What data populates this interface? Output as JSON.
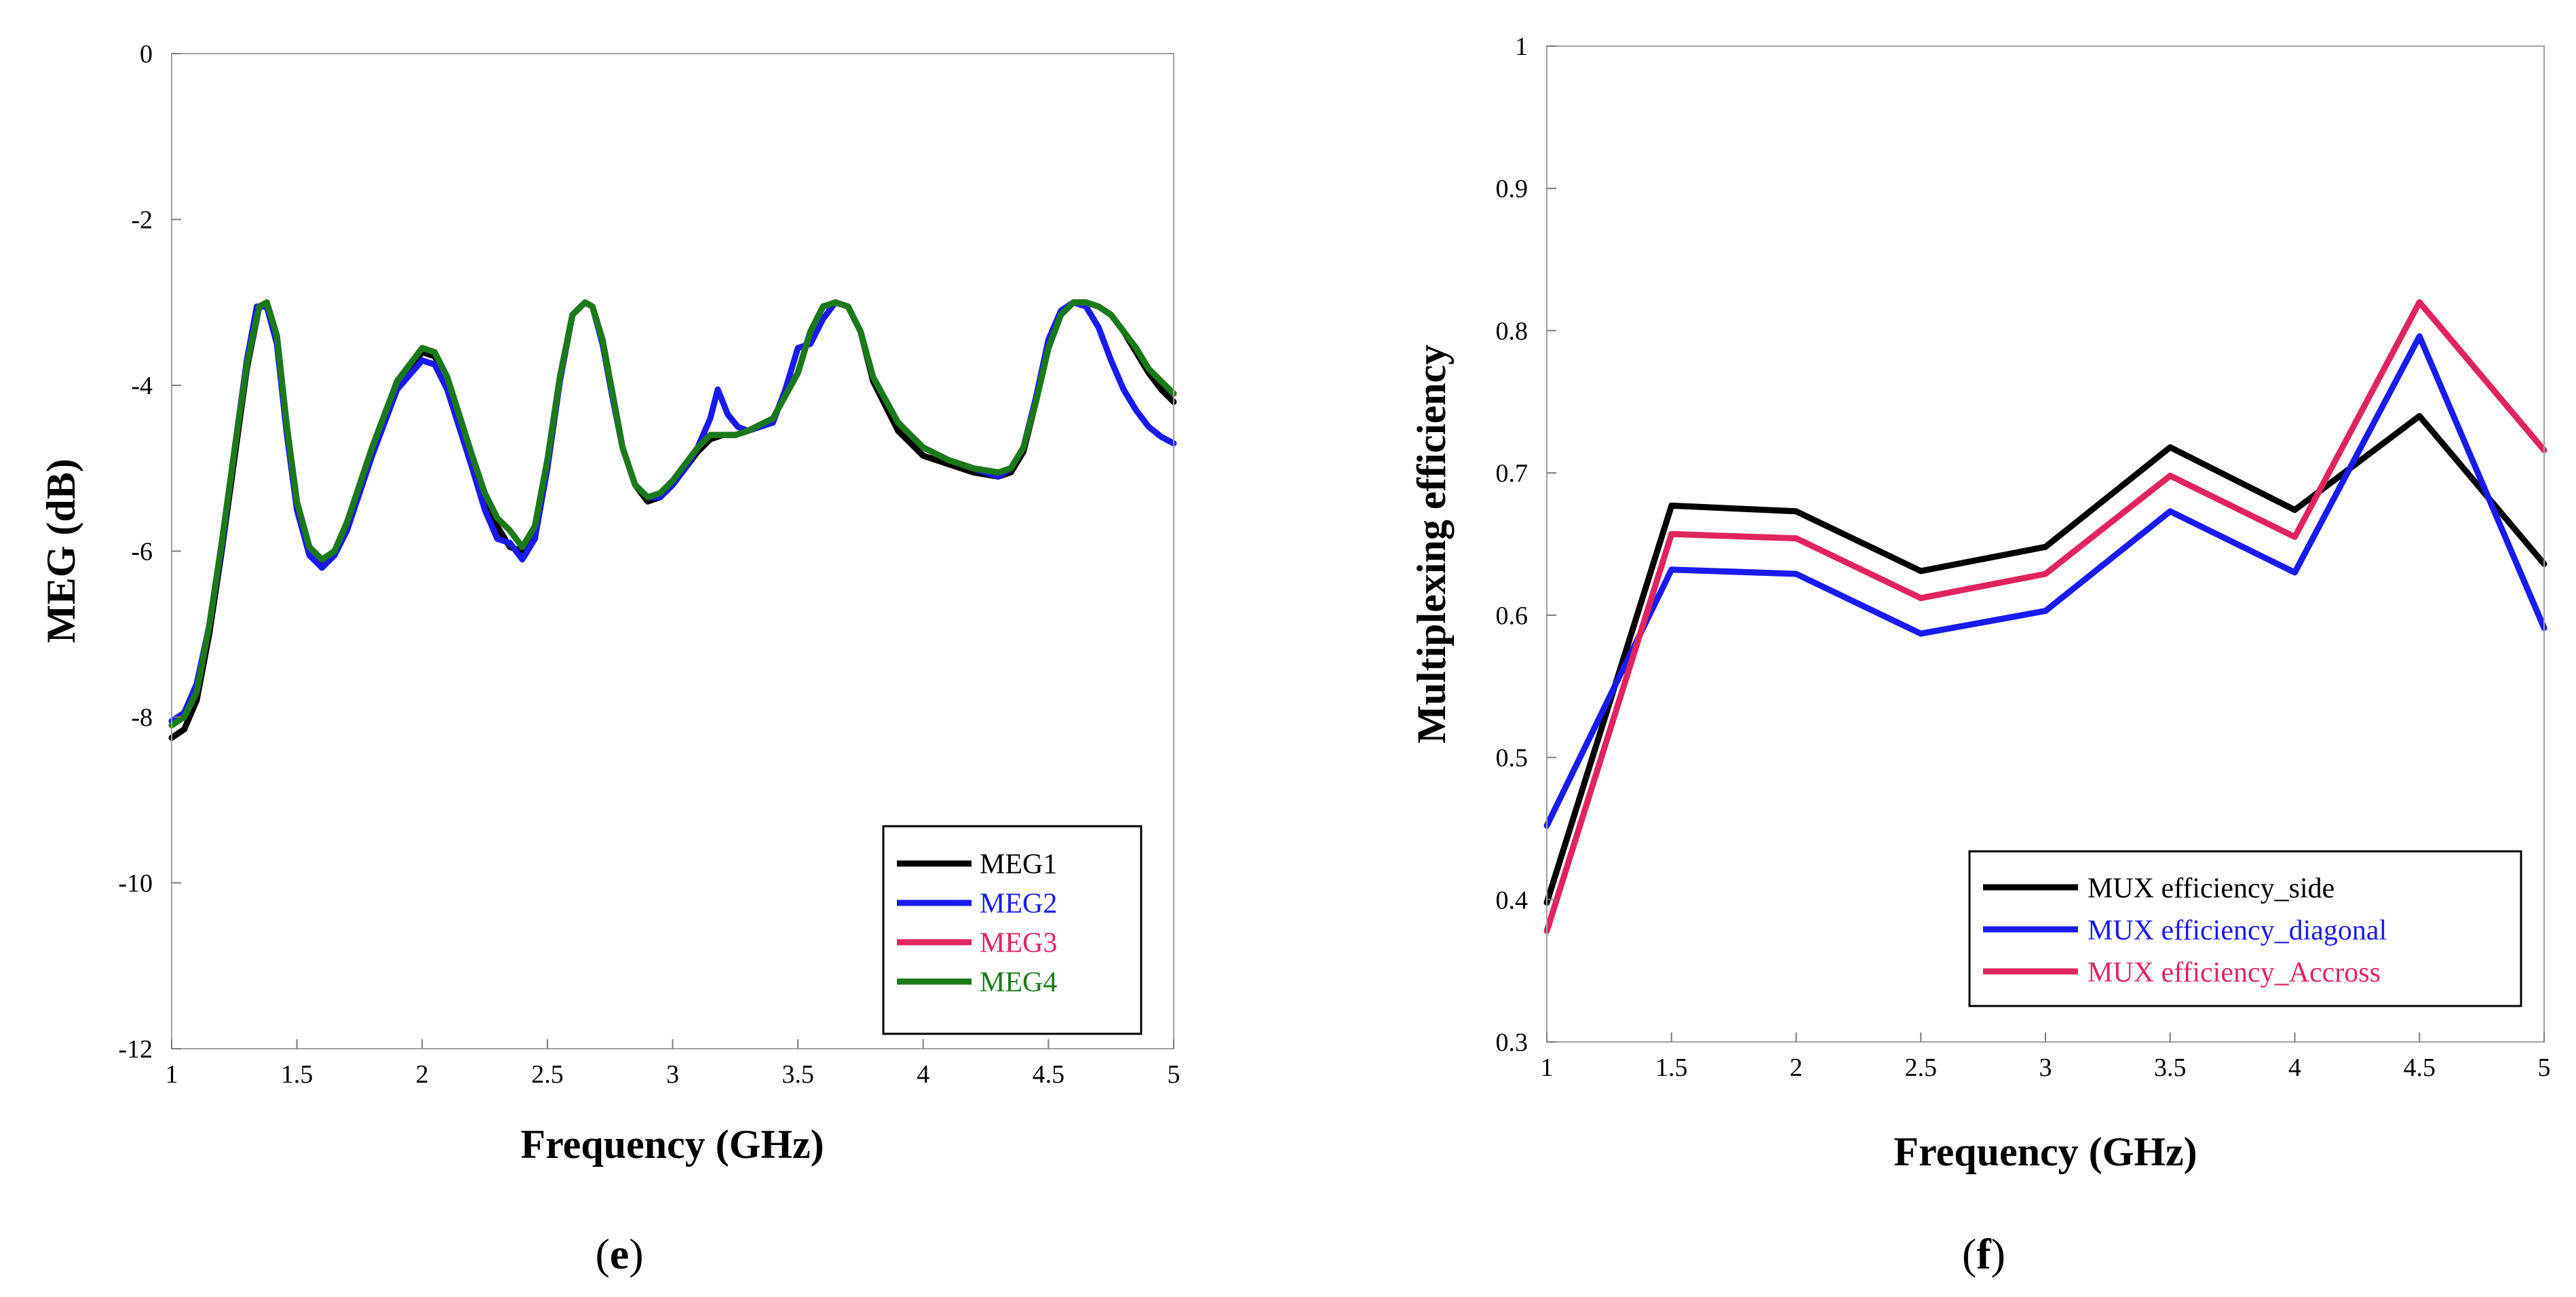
{
  "chart_data": [
    {
      "type": "line",
      "panel": "e",
      "title": "",
      "xlabel": "Frequency (GHz)",
      "ylabel": "MEG (dB)",
      "xlim": [
        1,
        5
      ],
      "ylim": [
        -12,
        0
      ],
      "xticks": [
        1,
        1.5,
        2,
        2.5,
        3,
        3.5,
        4,
        4.5,
        5
      ],
      "yticks": [
        0,
        -2,
        -4,
        -6,
        -8,
        -10,
        -12
      ],
      "xtick_labels": [
        "1",
        "1.5",
        "2",
        "2.5",
        "3",
        "3.5",
        "4",
        "4.5",
        "5"
      ],
      "ytick_labels": [
        "0",
        "-2",
        "-4",
        "-6",
        "-8",
        "-10",
        "-12"
      ],
      "grid": false,
      "legend_position": "bottom-right",
      "series": [
        {
          "name": "MEG1",
          "color": "#000000",
          "x": [
            1.0,
            1.05,
            1.1,
            1.15,
            1.2,
            1.25,
            1.3,
            1.35,
            1.38,
            1.42,
            1.46,
            1.5,
            1.55,
            1.6,
            1.65,
            1.7,
            1.8,
            1.9,
            2.0,
            2.05,
            2.1,
            2.2,
            2.3,
            2.35,
            2.4,
            2.45,
            2.5,
            2.55,
            2.6,
            2.65,
            2.68,
            2.72,
            2.76,
            2.8,
            2.85,
            2.9,
            2.95,
            3.0,
            3.05,
            3.1,
            3.15,
            3.2,
            3.25,
            3.3,
            3.4,
            3.5,
            3.55,
            3.6,
            3.65,
            3.7,
            3.75,
            3.8,
            3.9,
            4.0,
            4.1,
            4.2,
            4.3,
            4.35,
            4.4,
            4.45,
            4.5,
            4.55,
            4.6,
            4.65,
            4.7,
            4.75,
            4.8,
            4.85,
            4.9,
            4.95,
            5.0
          ],
          "y": [
            -8.25,
            -8.15,
            -7.8,
            -7.0,
            -6.0,
            -4.9,
            -3.8,
            -3.05,
            -3.0,
            -3.4,
            -4.5,
            -5.4,
            -6.0,
            -6.15,
            -6.05,
            -5.7,
            -4.8,
            -4.0,
            -3.6,
            -3.65,
            -3.95,
            -4.9,
            -5.7,
            -5.95,
            -6.0,
            -5.7,
            -4.9,
            -3.9,
            -3.15,
            -3.0,
            -3.05,
            -3.45,
            -4.1,
            -4.75,
            -5.2,
            -5.4,
            -5.35,
            -5.2,
            -5.0,
            -4.8,
            -4.65,
            -4.6,
            -4.6,
            -4.55,
            -4.4,
            -3.85,
            -3.35,
            -3.05,
            -3.0,
            -3.05,
            -3.35,
            -3.95,
            -4.55,
            -4.85,
            -4.95,
            -5.05,
            -5.1,
            -5.05,
            -4.8,
            -4.2,
            -3.55,
            -3.15,
            -3.0,
            -3.0,
            -3.05,
            -3.15,
            -3.35,
            -3.6,
            -3.85,
            -4.05,
            -4.2
          ]
        },
        {
          "name": "MEG2",
          "color": "#1a1aee",
          "x": [
            1.0,
            1.05,
            1.1,
            1.15,
            1.2,
            1.25,
            1.3,
            1.34,
            1.38,
            1.42,
            1.46,
            1.5,
            1.55,
            1.6,
            1.65,
            1.7,
            1.8,
            1.9,
            2.0,
            2.05,
            2.1,
            2.2,
            2.25,
            2.3,
            2.35,
            2.4,
            2.45,
            2.5,
            2.55,
            2.6,
            2.65,
            2.68,
            2.72,
            2.76,
            2.8,
            2.85,
            2.9,
            2.95,
            3.0,
            3.05,
            3.1,
            3.15,
            3.18,
            3.22,
            3.26,
            3.3,
            3.35,
            3.4,
            3.45,
            3.5,
            3.55,
            3.6,
            3.65,
            3.7,
            3.75,
            3.8,
            3.9,
            4.0,
            4.1,
            4.2,
            4.3,
            4.35,
            4.4,
            4.45,
            4.5,
            4.55,
            4.6,
            4.65,
            4.7,
            4.75,
            4.8,
            4.85,
            4.9,
            4.95,
            5.0
          ],
          "y": [
            -8.05,
            -7.95,
            -7.6,
            -6.9,
            -5.95,
            -4.8,
            -3.7,
            -3.05,
            -3.05,
            -3.5,
            -4.6,
            -5.5,
            -6.05,
            -6.2,
            -6.05,
            -5.75,
            -4.85,
            -4.05,
            -3.7,
            -3.75,
            -4.05,
            -5.0,
            -5.5,
            -5.85,
            -5.9,
            -6.1,
            -5.85,
            -5.0,
            -3.95,
            -3.15,
            -3.0,
            -3.05,
            -3.5,
            -4.15,
            -4.75,
            -5.2,
            -5.35,
            -5.35,
            -5.2,
            -5.0,
            -4.75,
            -4.4,
            -4.05,
            -4.35,
            -4.5,
            -4.55,
            -4.5,
            -4.45,
            -4.05,
            -3.55,
            -3.5,
            -3.2,
            -3.0,
            -3.05,
            -3.35,
            -3.9,
            -4.45,
            -4.75,
            -4.9,
            -5.0,
            -5.1,
            -5.0,
            -4.75,
            -4.15,
            -3.45,
            -3.1,
            -3.0,
            -3.05,
            -3.3,
            -3.7,
            -4.05,
            -4.3,
            -4.5,
            -4.62,
            -4.7
          ]
        },
        {
          "name": "MEG3",
          "color": "#e0245e",
          "x": [
            1.0,
            1.05,
            1.1,
            1.15,
            1.2,
            1.25,
            1.3,
            1.35,
            1.38,
            1.42,
            1.46,
            1.5,
            1.55,
            1.6,
            1.65,
            1.7,
            1.8,
            1.9,
            2.0,
            2.05,
            2.1,
            2.2,
            2.25,
            2.3,
            2.35,
            2.4,
            2.45,
            2.5,
            2.55,
            2.6,
            2.65,
            2.68,
            2.72,
            2.76,
            2.8,
            2.85,
            2.9,
            2.95,
            3.0,
            3.05,
            3.1,
            3.15,
            3.2,
            3.25,
            3.3,
            3.4,
            3.5,
            3.55,
            3.6,
            3.65,
            3.7,
            3.75,
            3.8,
            3.9,
            4.0,
            4.1,
            4.2,
            4.3,
            4.35,
            4.4,
            4.45,
            4.5,
            4.55,
            4.6,
            4.65,
            4.7,
            4.75,
            4.8,
            4.85,
            4.9,
            4.95,
            5.0
          ],
          "y": [
            -8.1,
            -8.0,
            -7.7,
            -6.9,
            -5.9,
            -4.8,
            -3.75,
            -3.05,
            -3.0,
            -3.4,
            -4.5,
            -5.4,
            -5.95,
            -6.1,
            -6.0,
            -5.65,
            -4.75,
            -3.95,
            -3.55,
            -3.6,
            -3.9,
            -4.85,
            -5.3,
            -5.6,
            -5.75,
            -5.95,
            -5.7,
            -4.9,
            -3.9,
            -3.15,
            -3.0,
            -3.05,
            -3.45,
            -4.1,
            -4.75,
            -5.2,
            -5.35,
            -5.3,
            -5.15,
            -4.95,
            -4.75,
            -4.6,
            -4.6,
            -4.6,
            -4.55,
            -4.4,
            -3.85,
            -3.35,
            -3.05,
            -3.0,
            -3.05,
            -3.35,
            -3.9,
            -4.45,
            -4.75,
            -4.9,
            -5.0,
            -5.05,
            -5.0,
            -4.75,
            -4.2,
            -3.55,
            -3.15,
            -3.0,
            -3.0,
            -3.05,
            -3.15,
            -3.35,
            -3.55,
            -3.8,
            -3.95,
            -4.1
          ]
        },
        {
          "name": "MEG4",
          "color": "#1a7a1a",
          "x": [
            1.0,
            1.05,
            1.1,
            1.15,
            1.2,
            1.25,
            1.3,
            1.35,
            1.38,
            1.42,
            1.46,
            1.5,
            1.55,
            1.6,
            1.65,
            1.7,
            1.8,
            1.9,
            2.0,
            2.05,
            2.1,
            2.2,
            2.25,
            2.3,
            2.35,
            2.4,
            2.45,
            2.5,
            2.55,
            2.6,
            2.65,
            2.68,
            2.72,
            2.76,
            2.8,
            2.85,
            2.9,
            2.95,
            3.0,
            3.05,
            3.1,
            3.15,
            3.2,
            3.25,
            3.3,
            3.4,
            3.5,
            3.55,
            3.6,
            3.65,
            3.7,
            3.75,
            3.8,
            3.9,
            4.0,
            4.1,
            4.2,
            4.3,
            4.35,
            4.4,
            4.45,
            4.5,
            4.55,
            4.6,
            4.65,
            4.7,
            4.75,
            4.8,
            4.85,
            4.9,
            4.95,
            5.0
          ],
          "y": [
            -8.1,
            -8.0,
            -7.7,
            -6.9,
            -5.9,
            -4.8,
            -3.75,
            -3.05,
            -3.0,
            -3.4,
            -4.5,
            -5.4,
            -5.95,
            -6.1,
            -6.0,
            -5.65,
            -4.75,
            -3.95,
            -3.55,
            -3.6,
            -3.9,
            -4.85,
            -5.3,
            -5.6,
            -5.75,
            -5.95,
            -5.7,
            -4.9,
            -3.9,
            -3.15,
            -3.0,
            -3.05,
            -3.45,
            -4.1,
            -4.75,
            -5.2,
            -5.35,
            -5.3,
            -5.15,
            -4.95,
            -4.75,
            -4.6,
            -4.6,
            -4.6,
            -4.55,
            -4.4,
            -3.85,
            -3.35,
            -3.05,
            -3.0,
            -3.05,
            -3.35,
            -3.9,
            -4.45,
            -4.75,
            -4.9,
            -5.0,
            -5.05,
            -5.0,
            -4.75,
            -4.2,
            -3.55,
            -3.15,
            -3.0,
            -3.0,
            -3.05,
            -3.15,
            -3.35,
            -3.55,
            -3.8,
            -3.95,
            -4.1
          ]
        }
      ]
    },
    {
      "type": "line",
      "panel": "f",
      "title": "",
      "xlabel": "Frequency (GHz)",
      "ylabel": "Multiplexing efficiency",
      "xlim": [
        1,
        5
      ],
      "ylim": [
        0.3,
        1
      ],
      "xticks": [
        1,
        1.5,
        2,
        2.5,
        3,
        3.5,
        4,
        4.5,
        5
      ],
      "yticks": [
        1,
        0.9,
        0.8,
        0.7,
        0.6,
        0.5,
        0.4,
        0.3
      ],
      "xtick_labels": [
        "1",
        "1.5",
        "2",
        "2.5",
        "3",
        "3.5",
        "4",
        "4.5",
        "5"
      ],
      "ytick_labels": [
        "1",
        "0.9",
        "0.8",
        "0.7",
        "0.6",
        "0.5",
        "0.4",
        "0.3"
      ],
      "grid": false,
      "legend_position": "bottom-right",
      "series": [
        {
          "name": "MUX efficiency_side",
          "color": "#000000",
          "x": [
            1,
            1.5,
            2,
            2.5,
            3,
            3.5,
            4,
            4.5,
            5
          ],
          "y": [
            0.398,
            0.677,
            0.673,
            0.631,
            0.648,
            0.718,
            0.674,
            0.74,
            0.636
          ]
        },
        {
          "name": "MUX efficiency_diagonal",
          "color": "#1a1aee",
          "x": [
            1,
            1.5,
            2,
            2.5,
            3,
            3.5,
            4,
            4.5,
            5
          ],
          "y": [
            0.452,
            0.632,
            0.629,
            0.587,
            0.603,
            0.673,
            0.63,
            0.796,
            0.591
          ]
        },
        {
          "name": "MUX efficiency_Accross",
          "color": "#e0245e",
          "x": [
            1,
            1.5,
            2,
            2.5,
            3,
            3.5,
            4,
            4.5,
            5
          ],
          "y": [
            0.378,
            0.657,
            0.654,
            0.612,
            0.629,
            0.698,
            0.655,
            0.82,
            0.716
          ]
        }
      ]
    }
  ],
  "panel_labels": {
    "e": {
      "open": "(",
      "letter": "e",
      "close": ")"
    },
    "f": {
      "open": "(",
      "letter": "f",
      "close": ")"
    }
  }
}
